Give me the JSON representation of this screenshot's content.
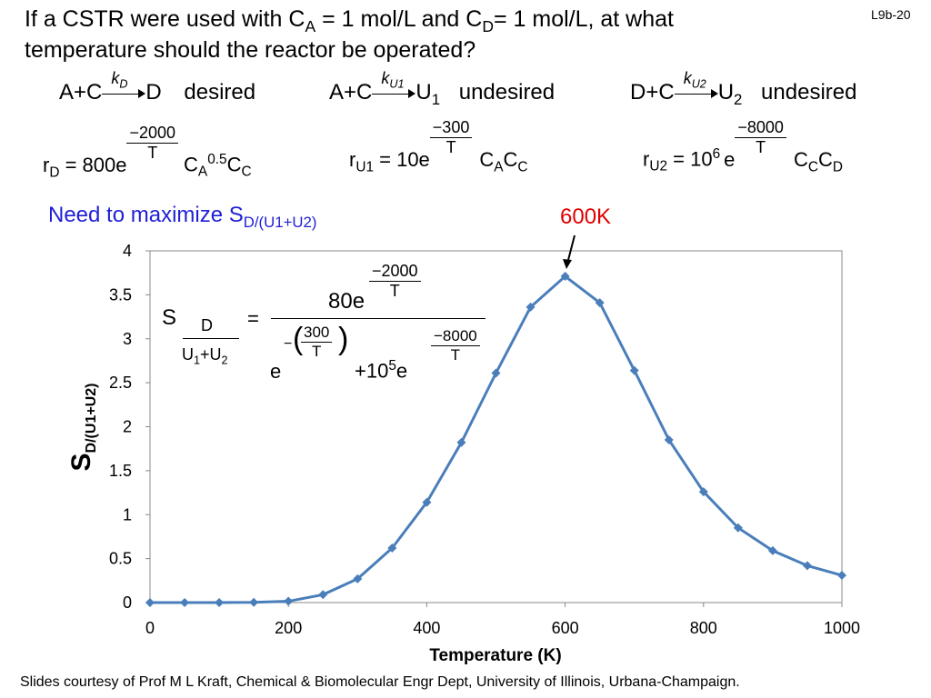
{
  "slide_number": "L9b-20",
  "question": {
    "line1_a": "If a CSTR were used with C",
    "line1_sub_a": "A",
    "line1_b": " = 1 mol/L and C",
    "line1_sub_d": "D",
    "line1_c": "= 1 mol/L, at what",
    "line2": "temperature should the reactor be operated?"
  },
  "reactions": [
    {
      "lhs": "A+C",
      "k": "k",
      "k_sub": "D",
      "rhs": "D",
      "rhs_sub": "",
      "label": "desired"
    },
    {
      "lhs": "A+C",
      "k": "k",
      "k_sub": "U1",
      "rhs": "U",
      "rhs_sub": "1",
      "label": "undesired"
    },
    {
      "lhs": "D+C",
      "k": "k",
      "k_sub": "U2",
      "rhs": "U",
      "rhs_sub": "2",
      "label": "undesired"
    }
  ],
  "rates": [
    {
      "r": "r",
      "r_sub": "D",
      "pre": " = 800e",
      "exp_num": "−2000",
      "exp_den": "T",
      "post": "C",
      "post_sub1": "A",
      "post_sup": "0.5",
      "post2": "C",
      "post_sub2": "C"
    },
    {
      "r": "r",
      "r_sub": "U1",
      "pre": " = 10e",
      "exp_num": "−300",
      "exp_den": "T",
      "post": "C",
      "post_sub1": "A",
      "post2": "C",
      "post_sub2": "C"
    },
    {
      "r": "r",
      "r_sub": "U2",
      "pre": " = 10",
      "pre_sup": "6",
      "pre_e": "e",
      "exp_num": "−8000",
      "exp_den": "T",
      "post": "C",
      "post_sub1": "C",
      "post2": "C",
      "post_sub2": "D"
    }
  ],
  "maximize_note": {
    "text": "Need to maximize S",
    "sub": "D/(U1+U2)",
    "color": "#1f1fd6"
  },
  "optimum_annotation": {
    "text": "600K",
    "color": "#e00000"
  },
  "selectivity_eq": {
    "S": "S",
    "S_sub_num": "D",
    "S_sub_den_a": "U",
    "S_sub_den_a_sub": "1",
    "S_sub_den_plus": "+",
    "S_sub_den_b": "U",
    "S_sub_den_b_sub": "2",
    "equals": "=",
    "num": "80e",
    "num_exp_num": "−2000",
    "num_exp_den": "T",
    "den_e": "e",
    "den_exp_sign": "−",
    "den_exp_num": "300",
    "den_exp_den": "T",
    "den_plus": "+10",
    "den_sup": "5",
    "den_e2": "e",
    "den2_exp_num": "−8000",
    "den2_exp_den": "T"
  },
  "chart_data": {
    "type": "line",
    "title": "",
    "xlabel": "Temperature (K)",
    "ylabel": "S",
    "ylabel_sub": "D/(U1+U2)",
    "xlim": [
      0,
      1000
    ],
    "ylim": [
      0,
      4
    ],
    "xticks": [
      0,
      200,
      400,
      600,
      800,
      1000
    ],
    "yticks": [
      0,
      0.5,
      1,
      1.5,
      2,
      2.5,
      3,
      3.5,
      4
    ],
    "ytick_labels": [
      "0",
      "0.5",
      "1",
      "1.5",
      "2",
      "2.5",
      "3",
      "3.5",
      "4"
    ],
    "grid": false,
    "series": [
      {
        "color": "#4a7ebb",
        "marker": "diamond",
        "x": [
          0,
          50,
          100,
          150,
          200,
          250,
          300,
          350,
          400,
          450,
          500,
          550,
          600,
          650,
          700,
          750,
          800,
          850,
          900,
          950,
          1000
        ],
        "y": [
          0,
          0,
          0,
          0.003,
          0.015,
          0.09,
          0.27,
          0.62,
          1.14,
          1.82,
          2.61,
          3.36,
          3.71,
          3.41,
          2.64,
          1.85,
          1.26,
          0.85,
          0.59,
          0.42,
          0.31
        ]
      }
    ]
  },
  "footer": "Slides courtesy of Prof M L Kraft, Chemical & Biomolecular Engr Dept, University of Illinois, Urbana-Champaign."
}
